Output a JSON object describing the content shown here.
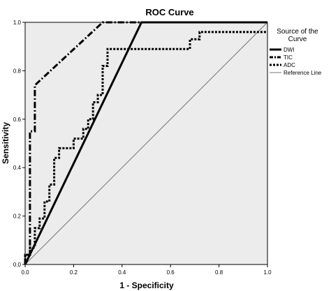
{
  "chart_data": {
    "type": "line",
    "title": "ROC Curve",
    "xlabel": "1 - Specificity",
    "ylabel": "Sensitivity",
    "xlim": [
      0,
      1
    ],
    "ylim": [
      0,
      1
    ],
    "xticks": [
      "0.0",
      "0.2",
      "0.4",
      "0.6",
      "0.8",
      "1.0"
    ],
    "yticks": [
      "0.0",
      "0.2",
      "0.4",
      "0.6",
      "0.8",
      "1.0"
    ],
    "grid": false,
    "legend": {
      "title": "Source of the Curve",
      "placement": "right"
    },
    "series": [
      {
        "name": "DWI",
        "style": "solid-thick",
        "color": "#000000",
        "x": [
          0,
          0.48,
          1
        ],
        "y": [
          0,
          1,
          1
        ]
      },
      {
        "name": "TIC",
        "style": "dash-dot-thick",
        "color": "#000000",
        "x": [
          0,
          0.0,
          0.02,
          0.02,
          0.04,
          0.04,
          0.32,
          1.0
        ],
        "y": [
          0,
          0.04,
          0.04,
          0.55,
          0.55,
          0.74,
          1.0,
          1.0
        ]
      },
      {
        "name": "ADC",
        "style": "dotted-thick",
        "color": "#000000",
        "x": [
          0,
          0.0,
          0.02,
          0.02,
          0.04,
          0.04,
          0.06,
          0.06,
          0.08,
          0.08,
          0.1,
          0.1,
          0.12,
          0.12,
          0.14,
          0.14,
          0.16,
          0.16,
          0.2,
          0.2,
          0.24,
          0.24,
          0.26,
          0.26,
          0.28,
          0.28,
          0.3,
          0.3,
          0.32,
          0.32,
          0.34,
          0.34,
          0.36,
          0.36,
          0.44,
          0.44,
          0.66,
          0.66,
          0.68,
          0.68,
          0.72,
          0.72,
          1.0
        ],
        "y": [
          0,
          0.04,
          0.04,
          0.07,
          0.07,
          0.15,
          0.15,
          0.19,
          0.19,
          0.26,
          0.26,
          0.33,
          0.33,
          0.44,
          0.44,
          0.48,
          0.48,
          0.48,
          0.48,
          0.52,
          0.52,
          0.56,
          0.56,
          0.6,
          0.6,
          0.67,
          0.67,
          0.7,
          0.7,
          0.82,
          0.82,
          0.89,
          0.89,
          0.89,
          0.89,
          0.89,
          0.89,
          0.89,
          0.89,
          0.93,
          0.93,
          0.96,
          0.96
        ]
      },
      {
        "name": "Reference Line",
        "style": "thin",
        "color": "#777777",
        "x": [
          0,
          1
        ],
        "y": [
          0,
          1
        ]
      }
    ]
  },
  "colors": {
    "plot_background": "#ececec",
    "axis": "#000000"
  }
}
